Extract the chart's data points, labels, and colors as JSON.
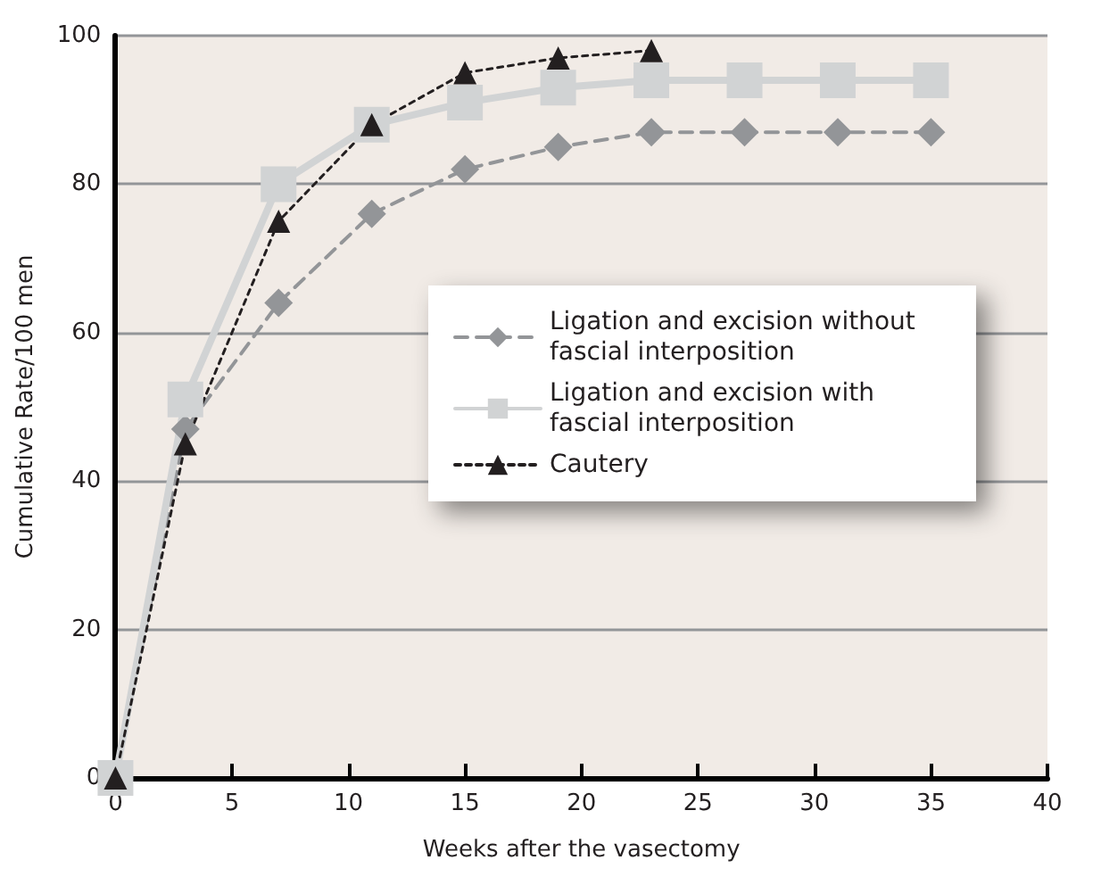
{
  "chart_data": {
    "type": "line",
    "xlabel": "Weeks after the vasectomy",
    "ylabel": "Cumulative Rate/100 men",
    "xlim": [
      0,
      40
    ],
    "xticks": [
      0,
      5,
      10,
      15,
      20,
      25,
      30,
      35,
      40
    ],
    "ylim": [
      0,
      100
    ],
    "yticks": [
      0,
      20,
      40,
      60,
      80,
      100
    ],
    "grid": "y",
    "legend": "right",
    "series": [
      {
        "name": "Ligation and excision without fascial interposition",
        "color": "#939598",
        "marker": "diamond",
        "line_style": "dashed",
        "x": [
          0,
          3,
          7,
          11,
          15,
          19,
          23,
          27,
          31,
          35
        ],
        "values": [
          0,
          47,
          64,
          76,
          82,
          85,
          87,
          87,
          87,
          87
        ]
      },
      {
        "name": "Ligation and excision with fascial interposition",
        "color": "#d1d3d4",
        "marker": "square",
        "line_style": "solid",
        "x": [
          0,
          3,
          7,
          11,
          15,
          19,
          23,
          27,
          31,
          35
        ],
        "values": [
          0,
          51,
          80,
          88,
          91,
          93,
          94,
          94,
          94,
          94
        ]
      },
      {
        "name": "Cautery",
        "color": "#231f20",
        "marker": "triangle",
        "line_style": "dotted",
        "x": [
          0,
          3,
          7,
          11,
          15,
          19,
          23
        ],
        "values": [
          0,
          45,
          75,
          88,
          95,
          97,
          98
        ]
      }
    ]
  }
}
